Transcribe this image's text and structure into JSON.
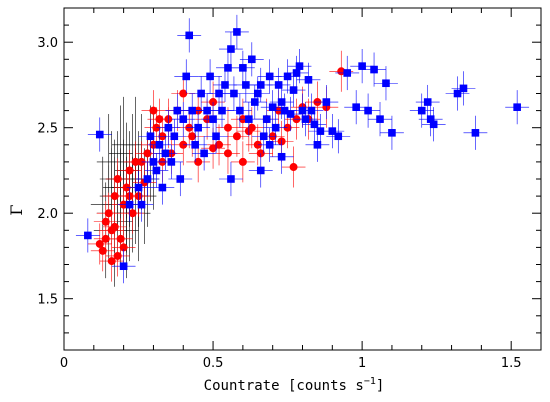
{
  "chart_data": {
    "type": "scatter",
    "xlabel": "Countrate [counts s",
    "xlabel_sup": "−1",
    "xlabel_end": "]",
    "ylabel": "Γ",
    "xlim": [
      0,
      1.6
    ],
    "ylim": [
      1.2,
      3.2
    ],
    "x_ticks": [
      0,
      0.5,
      1,
      1.5
    ],
    "x_tick_labels": [
      "0",
      "0.5",
      "1",
      "1.5"
    ],
    "y_ticks": [
      1.5,
      2.0,
      2.5,
      3.0
    ],
    "y_tick_labels": [
      "1.5",
      "2.0",
      "2.5",
      "3.0"
    ],
    "grid": false,
    "legend": "none",
    "colors": {
      "black": "#000000",
      "red": "#ff0000",
      "blue": "#0000ff"
    },
    "series": [
      {
        "marker": "none",
        "color": "#000000",
        "points": [
          [
            0.14,
            1.9
          ],
          [
            0.15,
            2.0
          ],
          [
            0.16,
            2.1
          ],
          [
            0.17,
            2.05
          ],
          [
            0.18,
            2.2
          ],
          [
            0.19,
            1.95
          ],
          [
            0.2,
            2.15
          ],
          [
            0.21,
            2.25
          ],
          [
            0.22,
            2.0
          ],
          [
            0.23,
            2.3
          ],
          [
            0.24,
            2.1
          ],
          [
            0.25,
            2.2
          ],
          [
            0.15,
            2.3
          ],
          [
            0.17,
            1.85
          ],
          [
            0.19,
            2.35
          ],
          [
            0.21,
            1.9
          ],
          [
            0.23,
            2.05
          ],
          [
            0.26,
            2.3
          ],
          [
            0.28,
            2.2
          ],
          [
            0.16,
            2.2
          ],
          [
            0.18,
            2.0
          ],
          [
            0.2,
            2.4
          ],
          [
            0.22,
            2.2
          ],
          [
            0.24,
            2.4
          ],
          [
            0.13,
            2.05
          ],
          [
            0.27,
            2.1
          ],
          [
            0.3,
            2.3
          ],
          [
            0.17,
            2.15
          ],
          [
            0.19,
            2.1
          ],
          [
            0.21,
            2.05
          ],
          [
            0.25,
            2.0
          ],
          [
            0.29,
            2.35
          ]
        ],
        "xerr": 0.04,
        "yerr": 0.28
      },
      {
        "marker": "circle",
        "color": "#ff0000",
        "points": [
          [
            0.12,
            1.82
          ],
          [
            0.13,
            1.78
          ],
          [
            0.14,
            1.95
          ],
          [
            0.15,
            2.0
          ],
          [
            0.16,
            1.9
          ],
          [
            0.17,
            2.1
          ],
          [
            0.18,
            2.2
          ],
          [
            0.19,
            1.85
          ],
          [
            0.2,
            2.05
          ],
          [
            0.21,
            2.15
          ],
          [
            0.22,
            2.25
          ],
          [
            0.23,
            2.0
          ],
          [
            0.24,
            2.3
          ],
          [
            0.25,
            2.1
          ],
          [
            0.26,
            2.3
          ],
          [
            0.28,
            2.35
          ],
          [
            0.3,
            2.4
          ],
          [
            0.31,
            2.5
          ],
          [
            0.32,
            2.55
          ],
          [
            0.33,
            2.45
          ],
          [
            0.35,
            2.5
          ],
          [
            0.38,
            2.6
          ],
          [
            0.4,
            2.7
          ],
          [
            0.42,
            2.5
          ],
          [
            0.45,
            2.6
          ],
          [
            0.48,
            2.55
          ],
          [
            0.5,
            2.65
          ],
          [
            0.52,
            2.4
          ],
          [
            0.55,
            2.5
          ],
          [
            0.58,
            2.45
          ],
          [
            0.6,
            2.55
          ],
          [
            0.63,
            2.5
          ],
          [
            0.65,
            2.4
          ],
          [
            0.68,
            2.55
          ],
          [
            0.7,
            2.45
          ],
          [
            0.72,
            2.6
          ],
          [
            0.75,
            2.5
          ],
          [
            0.78,
            2.55
          ],
          [
            0.8,
            2.62
          ],
          [
            0.82,
            2.55
          ],
          [
            0.85,
            2.65
          ],
          [
            0.88,
            2.62
          ],
          [
            0.93,
            2.83
          ],
          [
            0.6,
            2.3
          ],
          [
            0.55,
            2.35
          ],
          [
            0.5,
            2.38
          ],
          [
            0.45,
            2.3
          ],
          [
            0.4,
            2.4
          ],
          [
            0.36,
            2.35
          ],
          [
            0.33,
            2.3
          ],
          [
            0.62,
            2.48
          ],
          [
            0.77,
            2.27
          ],
          [
            0.73,
            2.42
          ],
          [
            0.66,
            2.35
          ],
          [
            0.16,
            1.72
          ],
          [
            0.18,
            1.75
          ],
          [
            0.2,
            1.8
          ],
          [
            0.14,
            1.85
          ],
          [
            0.17,
            1.92
          ],
          [
            0.22,
            2.1
          ],
          [
            0.27,
            2.18
          ],
          [
            0.35,
            2.55
          ],
          [
            0.3,
            2.6
          ],
          [
            0.43,
            2.45
          ]
        ],
        "xerr": 0.04,
        "yerr": 0.12
      },
      {
        "marker": "square",
        "color": "#0000ff",
        "points": [
          [
            0.08,
            1.87
          ],
          [
            0.12,
            2.46
          ],
          [
            0.2,
            1.69
          ],
          [
            0.22,
            2.05
          ],
          [
            0.25,
            2.15
          ],
          [
            0.28,
            2.2
          ],
          [
            0.3,
            2.3
          ],
          [
            0.32,
            2.4
          ],
          [
            0.33,
            2.15
          ],
          [
            0.35,
            2.5
          ],
          [
            0.36,
            2.3
          ],
          [
            0.38,
            2.6
          ],
          [
            0.4,
            2.55
          ],
          [
            0.41,
            2.8
          ],
          [
            0.42,
            3.04
          ],
          [
            0.43,
            2.6
          ],
          [
            0.44,
            2.4
          ],
          [
            0.45,
            2.5
          ],
          [
            0.46,
            2.7
          ],
          [
            0.47,
            2.35
          ],
          [
            0.48,
            2.6
          ],
          [
            0.49,
            2.8
          ],
          [
            0.5,
            2.55
          ],
          [
            0.51,
            2.45
          ],
          [
            0.52,
            2.7
          ],
          [
            0.53,
            2.6
          ],
          [
            0.54,
            2.75
          ],
          [
            0.55,
            2.85
          ],
          [
            0.56,
            2.96
          ],
          [
            0.57,
            2.7
          ],
          [
            0.58,
            3.06
          ],
          [
            0.59,
            2.6
          ],
          [
            0.6,
            2.85
          ],
          [
            0.61,
            2.75
          ],
          [
            0.62,
            2.55
          ],
          [
            0.63,
            2.9
          ],
          [
            0.64,
            2.65
          ],
          [
            0.65,
            2.7
          ],
          [
            0.66,
            2.75
          ],
          [
            0.67,
            2.45
          ],
          [
            0.68,
            2.55
          ],
          [
            0.69,
            2.8
          ],
          [
            0.7,
            2.62
          ],
          [
            0.71,
            2.5
          ],
          [
            0.72,
            2.75
          ],
          [
            0.73,
            2.65
          ],
          [
            0.74,
            2.6
          ],
          [
            0.75,
            2.8
          ],
          [
            0.76,
            2.58
          ],
          [
            0.77,
            2.72
          ],
          [
            0.78,
            2.82
          ],
          [
            0.79,
            2.86
          ],
          [
            0.8,
            2.6
          ],
          [
            0.81,
            2.55
          ],
          [
            0.82,
            2.78
          ],
          [
            0.83,
            2.6
          ],
          [
            0.84,
            2.52
          ],
          [
            0.85,
            2.4
          ],
          [
            0.86,
            2.48
          ],
          [
            0.88,
            2.65
          ],
          [
            0.9,
            2.48
          ],
          [
            0.92,
            2.45
          ],
          [
            0.95,
            2.82
          ],
          [
            0.98,
            2.62
          ],
          [
            1.0,
            2.86
          ],
          [
            1.02,
            2.6
          ],
          [
            1.04,
            2.84
          ],
          [
            1.06,
            2.55
          ],
          [
            1.08,
            2.76
          ],
          [
            1.1,
            2.47
          ],
          [
            1.2,
            2.6
          ],
          [
            1.22,
            2.65
          ],
          [
            1.23,
            2.55
          ],
          [
            1.24,
            2.52
          ],
          [
            1.32,
            2.7
          ],
          [
            1.34,
            2.73
          ],
          [
            1.38,
            2.47
          ],
          [
            1.52,
            2.62
          ],
          [
            0.26,
            2.05
          ],
          [
            0.29,
            2.45
          ],
          [
            0.31,
            2.25
          ],
          [
            0.34,
            2.35
          ],
          [
            0.37,
            2.45
          ],
          [
            0.39,
            2.2
          ],
          [
            0.56,
            2.2
          ],
          [
            0.66,
            2.25
          ],
          [
            0.73,
            2.33
          ],
          [
            0.69,
            2.4
          ]
        ],
        "xerr": 0.04,
        "yerr": 0.1
      }
    ]
  }
}
